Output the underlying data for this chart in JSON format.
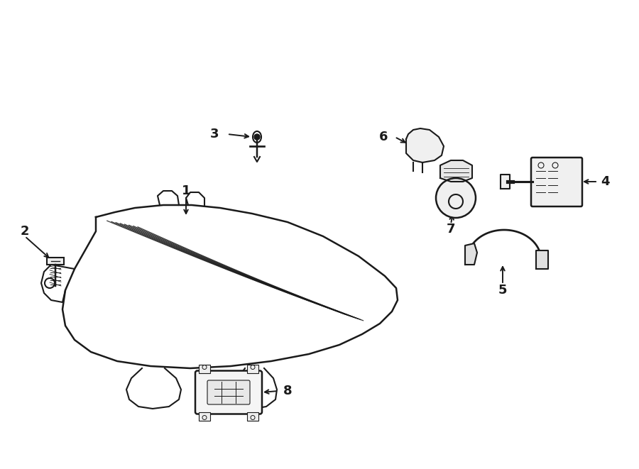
{
  "bg_color": "#ffffff",
  "line_color": "#1a1a1a",
  "line_width": 1.5,
  "fig_width": 9.0,
  "fig_height": 6.61
}
